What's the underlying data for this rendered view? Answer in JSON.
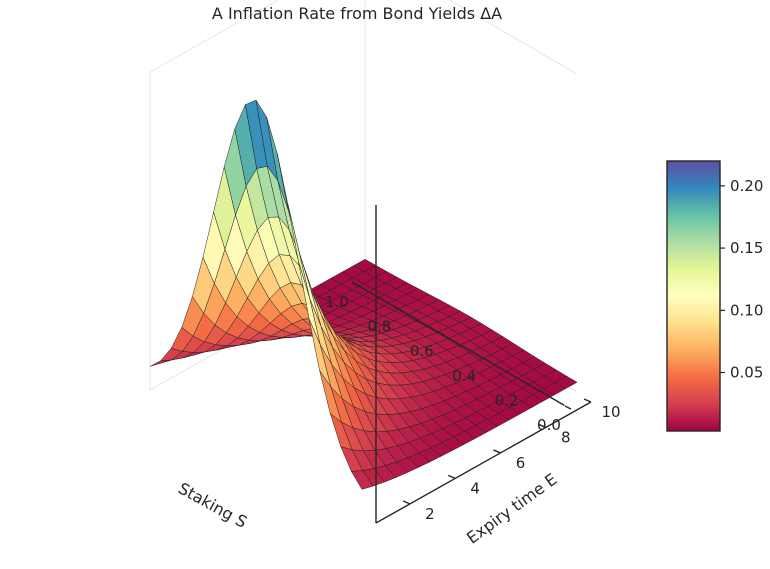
{
  "chart_data": {
    "type": "surface3d",
    "title": "A Inflation Rate from Bond Yields ΔA",
    "xlabel": "Staking S",
    "ylabel": "Expiry time E",
    "x_ticks": [
      "0.0",
      "0.2",
      "0.4",
      "0.6",
      "0.8",
      "1.0"
    ],
    "y_ticks": [
      "2",
      "4",
      "6",
      "8",
      "10"
    ],
    "xlim": [
      0,
      1
    ],
    "ylim": [
      0.5,
      10
    ],
    "colorbar_ticks": [
      "0.05",
      "0.10",
      "0.15",
      "0.20"
    ],
    "colorbar_range": [
      0.003,
      0.22
    ],
    "colormap": "Spectral",
    "surface": {
      "S_values": [
        0.0,
        0.05,
        0.1,
        0.15,
        0.2,
        0.25,
        0.3,
        0.35,
        0.4,
        0.45,
        0.5,
        0.55,
        0.6,
        0.65,
        0.7,
        0.75,
        0.8,
        0.85,
        0.9,
        0.95,
        1.0
      ],
      "E_min": 0.5,
      "E_max": 10,
      "E_steps": 19,
      "peak_value": 0.22,
      "note_shape": "peak at S≈0.5 for short expiry, decaying with expiry and near S=1"
    }
  }
}
